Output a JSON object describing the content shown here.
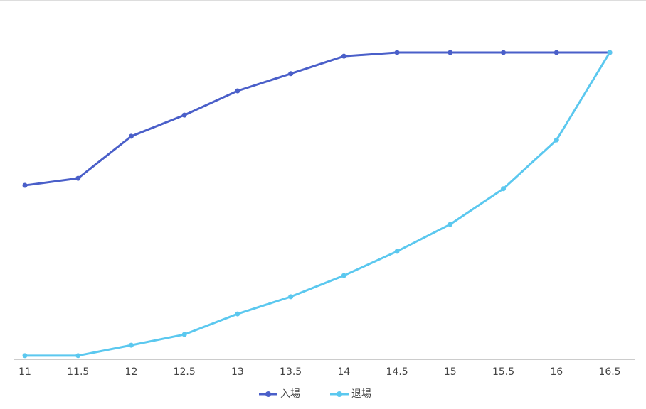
{
  "chart_data": {
    "type": "line",
    "x": [
      11,
      11.5,
      12,
      12.5,
      13,
      13.5,
      14,
      14.5,
      15,
      15.5,
      16,
      16.5
    ],
    "series": [
      {
        "name": "入場",
        "color": "#4a5fc9",
        "values": [
          56.7,
          59.0,
          72.7,
          79.6,
          87.5,
          93.1,
          98.8,
          100,
          100,
          100,
          100,
          100
        ]
      },
      {
        "name": "退場",
        "color": "#5bc8ef",
        "values": [
          1.2,
          1.2,
          4.6,
          8.1,
          14.8,
          20.4,
          27.3,
          35.2,
          44.0,
          55.6,
          71.5,
          100
        ]
      }
    ],
    "xlim": [
      11,
      16.5
    ],
    "xticks": [
      11,
      11.5,
      12,
      12.5,
      13,
      13.5,
      14,
      14.5,
      15,
      15.5,
      16,
      16.5
    ],
    "ylim": [
      0,
      100
    ],
    "legend": "bottom"
  }
}
